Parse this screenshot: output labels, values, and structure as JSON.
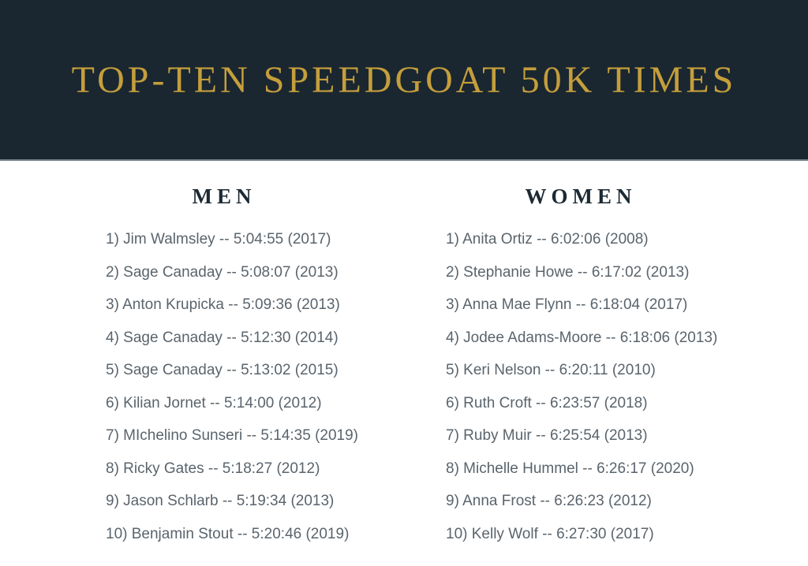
{
  "header": {
    "title": "TOP-TEN SPEEDGOAT 50K TIMES"
  },
  "colors": {
    "band_background": "#1a2730",
    "title_gold": "#c59e3c",
    "heading_navy": "#1c2a34",
    "body_text_gray": "#5a646c",
    "band_divider": "#6e7d86",
    "page_background": "#ffffff"
  },
  "columns": [
    {
      "heading": "MEN",
      "entries": [
        {
          "display": "1) Jim Walmsley -- 5:04:55 (2017)",
          "rank": 1,
          "name": "Jim Walmsley",
          "time": "5:04:55",
          "year": 2017
        },
        {
          "display": "2) Sage Canaday -- 5:08:07 (2013)",
          "rank": 2,
          "name": "Sage Canaday",
          "time": "5:08:07",
          "year": 2013
        },
        {
          "display": "3) Anton Krupicka -- 5:09:36 (2013)",
          "rank": 3,
          "name": "Anton Krupicka",
          "time": "5:09:36",
          "year": 2013
        },
        {
          "display": "4) Sage Canaday -- 5:12:30 (2014)",
          "rank": 4,
          "name": "Sage Canaday",
          "time": "5:12:30",
          "year": 2014
        },
        {
          "display": "5) Sage Canaday -- 5:13:02 (2015)",
          "rank": 5,
          "name": "Sage Canaday",
          "time": "5:13:02",
          "year": 2015
        },
        {
          "display": "6) Kilian Jornet -- 5:14:00 (2012)",
          "rank": 6,
          "name": "Kilian Jornet",
          "time": "5:14:00",
          "year": 2012
        },
        {
          "display": "7) MIchelino Sunseri -- 5:14:35 (2019)",
          "rank": 7,
          "name": "MIchelino Sunseri",
          "time": "5:14:35",
          "year": 2019
        },
        {
          "display": "8) Ricky Gates -- 5:18:27 (2012)",
          "rank": 8,
          "name": "Ricky Gates",
          "time": "5:18:27",
          "year": 2012
        },
        {
          "display": "9) Jason Schlarb -- 5:19:34 (2013)",
          "rank": 9,
          "name": "Jason Schlarb",
          "time": "5:19:34",
          "year": 2013
        },
        {
          "display": "10) Benjamin Stout -- 5:20:46 (2019)",
          "rank": 10,
          "name": "Benjamin Stout",
          "time": "5:20:46",
          "year": 2019
        }
      ]
    },
    {
      "heading": "WOMEN",
      "entries": [
        {
          "display": "1) Anita Ortiz -- 6:02:06 (2008)",
          "rank": 1,
          "name": "Anita Ortiz",
          "time": "6:02:06",
          "year": 2008
        },
        {
          "display": "2) Stephanie Howe -- 6:17:02 (2013)",
          "rank": 2,
          "name": "Stephanie Howe",
          "time": "6:17:02",
          "year": 2013
        },
        {
          "display": "3) Anna Mae Flynn -- 6:18:04 (2017)",
          "rank": 3,
          "name": "Anna Mae Flynn",
          "time": "6:18:04",
          "year": 2017
        },
        {
          "display": "4) Jodee Adams-Moore -- 6:18:06 (2013)",
          "rank": 4,
          "name": "Jodee Adams-Moore",
          "time": "6:18:06",
          "year": 2013
        },
        {
          "display": "5) Keri Nelson -- 6:20:11 (2010)",
          "rank": 5,
          "name": "Keri Nelson",
          "time": "6:20:11",
          "year": 2010
        },
        {
          "display": "6) Ruth Croft -- 6:23:57 (2018)",
          "rank": 6,
          "name": "Ruth Croft",
          "time": "6:23:57",
          "year": 2018
        },
        {
          "display": "7) Ruby Muir -- 6:25:54 (2013)",
          "rank": 7,
          "name": "Ruby Muir",
          "time": "6:25:54",
          "year": 2013
        },
        {
          "display": "8) Michelle Hummel -- 6:26:17 (2020)",
          "rank": 8,
          "name": "Michelle Hummel",
          "time": "6:26:17",
          "year": 2020
        },
        {
          "display": "9) Anna Frost -- 6:26:23 (2012)",
          "rank": 9,
          "name": "Anna Frost",
          "time": "6:26:23",
          "year": 2012
        },
        {
          "display": "10) Kelly Wolf -- 6:27:30 (2017)",
          "rank": 10,
          "name": "Kelly Wolf",
          "time": "6:27:30",
          "year": 2017
        }
      ]
    }
  ]
}
